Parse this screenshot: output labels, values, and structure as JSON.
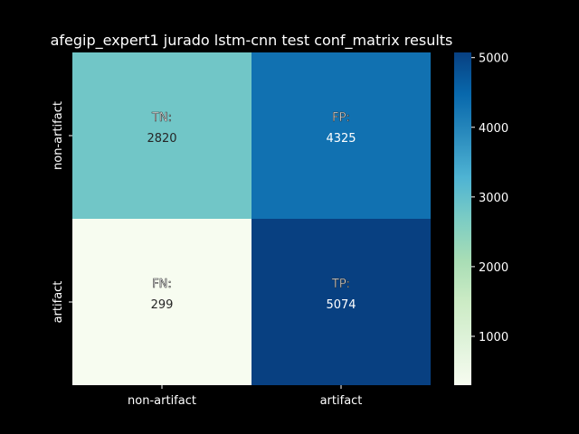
{
  "chart_data": {
    "type": "heatmap",
    "title": "afegip_expert1 jurado lstm-cnn test conf_matrix results",
    "row_labels": [
      "non-artifact",
      "artifact"
    ],
    "col_labels": [
      "non-artifact",
      "artifact"
    ],
    "cells": [
      [
        {
          "label": "TN:",
          "value": 2820
        },
        {
          "label": "FP:",
          "value": 4325
        }
      ],
      [
        {
          "label": "FN:",
          "value": 299
        },
        {
          "label": "TP:",
          "value": 5074
        }
      ]
    ],
    "colorbar": {
      "range": [
        299,
        5074
      ],
      "ticks": [
        1000,
        2000,
        3000,
        4000,
        5000
      ],
      "colormap": "GnBu",
      "stops": [
        "#f7fcf0",
        "#e0f3db",
        "#ccebc5",
        "#a8ddb5",
        "#7bccc4",
        "#4eb3d3",
        "#2b8cbe",
        "#0868ac",
        "#084081"
      ]
    },
    "background": "#000000",
    "text_color": "#ffffff"
  }
}
